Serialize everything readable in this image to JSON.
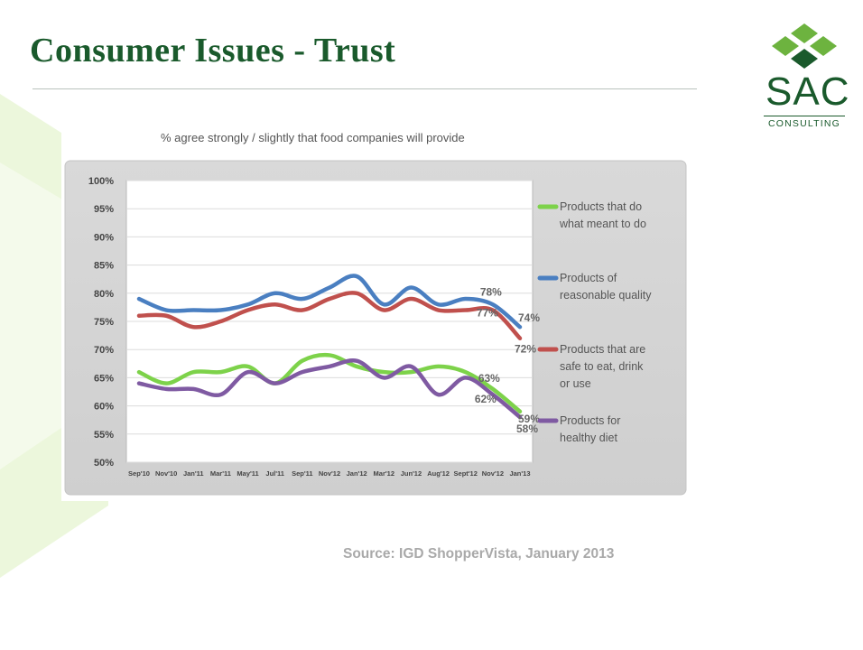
{
  "slide": {
    "title": "Consumer Issues - Trust",
    "source": "Source: IGD ShopperVista, January 2013"
  },
  "logo": {
    "name": "SAC",
    "subtitle": "CONSULTING",
    "colors": [
      "#6db33f",
      "#1a5a2c"
    ]
  },
  "colors": {
    "title": "#1a5a2c",
    "background_accent": "#ecf7dc",
    "chart_frame": "#d3d3d3",
    "source_text": "#a9a9a9"
  },
  "chart_data": {
    "type": "line",
    "title": "% agree strongly / slightly that food companies will provide",
    "xlabel": "",
    "ylabel": "",
    "ylim": [
      50,
      100
    ],
    "y_ticks": [
      "50%",
      "55%",
      "60%",
      "65%",
      "70%",
      "75%",
      "80%",
      "85%",
      "90%",
      "95%",
      "100%"
    ],
    "categories": [
      "Sep'10",
      "Nov'10",
      "Jan'11",
      "Mar'11",
      "May'11",
      "Jul'11",
      "Sep'11",
      "Nov'12",
      "Jan'12",
      "Mar'12",
      "Jun'12",
      "Aug'12",
      "Sept'12",
      "Nov'12",
      "Jan'13"
    ],
    "grid": true,
    "legend": "right",
    "series": [
      {
        "name": "Products that do what meant to do",
        "color": "#7dd24a",
        "values": [
          66,
          64,
          66,
          66,
          67,
          64,
          68,
          69,
          67,
          66,
          66,
          67,
          66,
          63,
          59
        ],
        "end_label": "59%",
        "annotation": "63%"
      },
      {
        "name": "Products of reasonable quality",
        "color": "#4a7fc1",
        "values": [
          79,
          77,
          77,
          77,
          78,
          80,
          79,
          81,
          83,
          78,
          81,
          78,
          79,
          78,
          74
        ],
        "end_label": "74%",
        "annotation": "78%"
      },
      {
        "name": "Products that are safe to eat, drink or use",
        "color": "#c0504d",
        "values": [
          76,
          76,
          74,
          75,
          77,
          78,
          77,
          79,
          80,
          77,
          79,
          77,
          77,
          77,
          72
        ],
        "end_label": "72%",
        "annotation": "77%"
      },
      {
        "name": "Products for healthy diet",
        "color": "#7f5aa2",
        "values": [
          64,
          63,
          63,
          62,
          66,
          64,
          66,
          67,
          68,
          65,
          67,
          62,
          65,
          62,
          58
        ],
        "end_label": "58%",
        "annotation": "62%"
      }
    ]
  }
}
